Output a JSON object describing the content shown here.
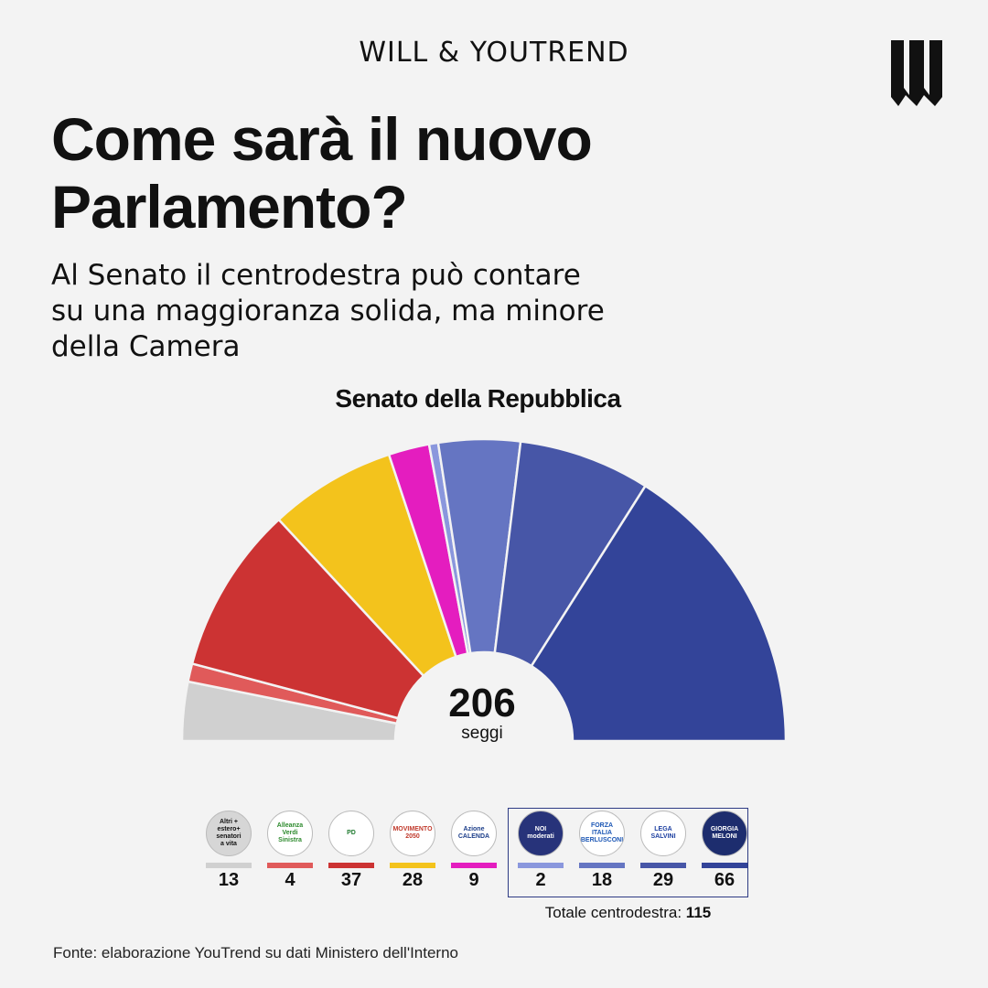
{
  "header": {
    "brand": "WILL & YOUTREND",
    "title_line1": "Come sarà il nuovo",
    "title_line2": "Parlamento?",
    "subtitle_line1": "Al Senato il centrodestra può contare",
    "subtitle_line2": "su una maggioranza solida, ma minore",
    "subtitle_line3": "della Camera"
  },
  "chart_data": {
    "type": "pie",
    "variant": "hemicycle",
    "title": "Senato della Repubblica",
    "total": 206,
    "total_label": "seggi",
    "series": [
      {
        "name": "Altri + estero+ senatori a vita",
        "values": [
          13
        ],
        "color": "#d0d0d0"
      },
      {
        "name": "Alleanza Verdi Sinistra",
        "values": [
          4
        ],
        "color": "#e05a5a"
      },
      {
        "name": "PD",
        "values": [
          37
        ],
        "color": "#cc3333"
      },
      {
        "name": "Movimento 5 Stelle",
        "values": [
          28
        ],
        "color": "#f3c31c"
      },
      {
        "name": "Azione Italia Viva Calenda",
        "values": [
          9
        ],
        "color": "#e41dbf"
      },
      {
        "name": "Noi Moderati",
        "values": [
          2
        ],
        "color": "#8a97dd"
      },
      {
        "name": "Forza Italia",
        "values": [
          18
        ],
        "color": "#6575c2"
      },
      {
        "name": "Lega",
        "values": [
          29
        ],
        "color": "#4756a7"
      },
      {
        "name": "Fratelli d'Italia",
        "values": [
          66
        ],
        "color": "#334499"
      }
    ]
  },
  "legend": {
    "items": [
      {
        "label_lines": [
          "Altri +",
          "estero+",
          "senatori",
          "a vita"
        ],
        "seats": "13",
        "color": "#d0d0d0",
        "logo_bg": "#d6d6d6",
        "logo_fg": "#111"
      },
      {
        "label_lines": [
          "Alleanza",
          "Verdi",
          "Sinistra"
        ],
        "seats": "4",
        "color": "#e05a5a",
        "logo_bg": "#ffffff",
        "logo_fg": "#2d8a2d"
      },
      {
        "label_lines": [
          "PD"
        ],
        "seats": "37",
        "color": "#cc3333",
        "logo_bg": "#ffffff",
        "logo_fg": "#1f7a2f"
      },
      {
        "label_lines": [
          "MOVIMENTO",
          "2050"
        ],
        "seats": "28",
        "color": "#f3c31c",
        "logo_bg": "#ffffff",
        "logo_fg": "#c0392b"
      },
      {
        "label_lines": [
          "Azione",
          "CALENDA"
        ],
        "seats": "9",
        "color": "#e41dbf",
        "logo_bg": "#ffffff",
        "logo_fg": "#1c3e8a"
      },
      {
        "label_lines": [
          "NOI",
          "moderati"
        ],
        "seats": "2",
        "color": "#8a97dd",
        "logo_bg": "#27337a",
        "logo_fg": "#ffffff"
      },
      {
        "label_lines": [
          "FORZA",
          "ITALIA",
          "BERLUSCONI"
        ],
        "seats": "18",
        "color": "#6575c2",
        "logo_bg": "#ffffff",
        "logo_fg": "#1c57b5"
      },
      {
        "label_lines": [
          "LEGA",
          "SALVINI"
        ],
        "seats": "29",
        "color": "#4756a7",
        "logo_bg": "#ffffff",
        "logo_fg": "#1c3fa0"
      },
      {
        "label_lines": [
          "GIORGIA",
          "MELONI"
        ],
        "seats": "66",
        "color": "#334499",
        "logo_bg": "#1d2d6e",
        "logo_fg": "#ffffff"
      }
    ],
    "coalition_label": "Totale centrodestra:",
    "coalition_total": "115"
  },
  "footer": {
    "source": "Fonte: elaborazione YouTrend su dati Ministero dell'Interno"
  }
}
